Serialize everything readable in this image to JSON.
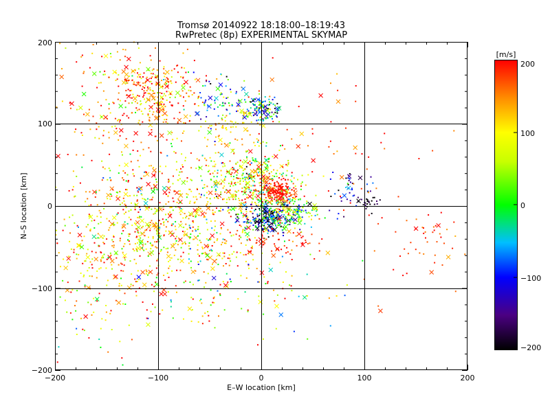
{
  "chart_data": {
    "type": "scatter",
    "title": "Tromsø 20140922  18:18:00–18:19:43",
    "subtitle": "RwPretec (8p) EXPERIMENTAL SKYMAP",
    "xlabel": "E–W location [km]",
    "ylabel": "N–S location [km]",
    "xlim": [
      -200,
      200
    ],
    "ylim": [
      -200,
      200
    ],
    "xticks": [
      "−200",
      "−100",
      "0",
      "100",
      "200"
    ],
    "yticks": [
      "−200",
      "−100",
      "0",
      "100",
      "200"
    ],
    "grid": true,
    "colorbar": {
      "label": "[m/s]",
      "range": [
        -200,
        200
      ],
      "ticks": [
        "200",
        "100",
        "0",
        "−100",
        "−200"
      ]
    },
    "clusters": [
      {
        "x": -100,
        "y": 140,
        "sx": 22,
        "sy": 22,
        "n": 260,
        "vmean": 150,
        "vsd": 70
      },
      {
        "x": -40,
        "y": 130,
        "sx": 14,
        "sy": 14,
        "n": 70,
        "vmean": -40,
        "vsd": 80
      },
      {
        "x": 2,
        "y": 118,
        "sx": 10,
        "sy": 7,
        "n": 120,
        "vmean": -60,
        "vsd": 90
      },
      {
        "x": -25,
        "y": 95,
        "sx": 15,
        "sy": 12,
        "n": 70,
        "vmean": 110,
        "vsd": 40
      },
      {
        "x": -10,
        "y": 30,
        "sx": 25,
        "sy": 22,
        "n": 420,
        "vmean": 80,
        "vsd": 90
      },
      {
        "x": 18,
        "y": 18,
        "sx": 8,
        "sy": 6,
        "n": 160,
        "vmean": 190,
        "vsd": 15
      },
      {
        "x": 5,
        "y": -15,
        "sx": 12,
        "sy": 9,
        "n": 230,
        "vmean": -120,
        "vsd": 90
      },
      {
        "x": 28,
        "y": -8,
        "sx": 12,
        "sy": 10,
        "n": 150,
        "vmean": 20,
        "vsd": 80
      },
      {
        "x": -90,
        "y": 25,
        "sx": 35,
        "sy": 25,
        "n": 180,
        "vmean": 120,
        "vsd": 80
      },
      {
        "x": -130,
        "y": -40,
        "sx": 45,
        "sy": 35,
        "n": 420,
        "vmean": 120,
        "vsd": 70
      },
      {
        "x": -60,
        "y": -30,
        "sx": 40,
        "sy": 30,
        "n": 260,
        "vmean": 100,
        "vsd": 80
      },
      {
        "x": 25,
        "y": -45,
        "sx": 20,
        "sy": 8,
        "n": 60,
        "vmean": 190,
        "vsd": 20
      },
      {
        "x": 90,
        "y": 20,
        "sx": 12,
        "sy": 15,
        "n": 40,
        "vmean": -130,
        "vsd": 60
      },
      {
        "x": 103,
        "y": 5,
        "sx": 6,
        "sy": 5,
        "n": 25,
        "vmean": -190,
        "vsd": 20
      },
      {
        "x": 170,
        "y": -30,
        "sx": 12,
        "sy": 8,
        "n": 18,
        "vmean": 180,
        "vsd": 30
      },
      {
        "x": -140,
        "y": 120,
        "sx": 40,
        "sy": 60,
        "n": 220,
        "vmean": 150,
        "vsd": 60
      },
      {
        "x": -30,
        "y": -100,
        "sx": 50,
        "sy": 30,
        "n": 120,
        "vmean": 80,
        "vsd": 100
      },
      {
        "x": -160,
        "y": -120,
        "sx": 30,
        "sy": 40,
        "n": 90,
        "vmean": 120,
        "vsd": 100
      },
      {
        "x": 60,
        "y": 60,
        "sx": 40,
        "sy": 50,
        "n": 60,
        "vmean": 180,
        "vsd": 30
      },
      {
        "x": 140,
        "y": -60,
        "sx": 30,
        "sy": 40,
        "n": 30,
        "vmean": 180,
        "vsd": 20
      }
    ]
  }
}
